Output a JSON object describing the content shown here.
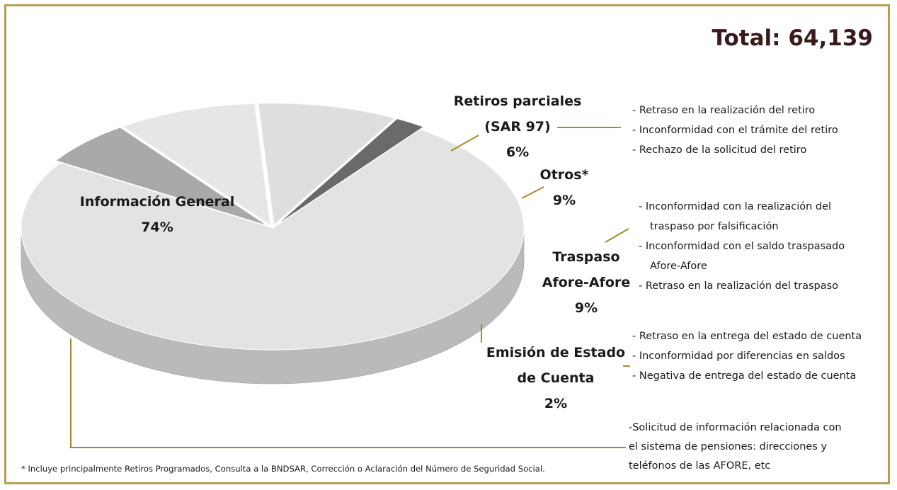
{
  "chart_data": {
    "type": "pie",
    "title": "Total: 64,139",
    "categories": [
      "Información General",
      "Retiros parciales (SAR 97)",
      "Otros*",
      "Traspaso Afore-Afore",
      "Emisión de Estado de Cuenta"
    ],
    "values": [
      74,
      6,
      9,
      9,
      2
    ],
    "value_labels": [
      "74%",
      "6%",
      "9%",
      "9%",
      "2%"
    ],
    "colors": [
      "#e3e3e1",
      "#a9a9a7",
      "#e6e6e4",
      "#dededc",
      "#6a6a6a"
    ],
    "notes": [
      [
        "-Solicitud de información relacionada con",
        "el sistema de  pensiones: direcciones y",
        "teléfonos de las AFORE, etc"
      ],
      [
        "- Retraso en la realización del retiro",
        "- Inconformidad con el trámite del retiro",
        "-  Rechazo de la solicitud del retiro"
      ],
      [],
      [
        "- Inconformidad con la realización del",
        "traspaso por falsificación",
        "- Inconformidad con el saldo traspasado",
        "Afore-Afore",
        "- Retraso en la realización del traspaso"
      ],
      [
        "- Retraso en la entrega del estado de cuenta",
        "- Inconformidad por diferencias en saldos",
        "- Negativa de entrega del estado de cuenta"
      ]
    ],
    "footnote": "* Incluye principalmente Retiros Programados, Consulta a la BNDSAR, Corrección o Aclaración del Número de Seguridad Social."
  }
}
